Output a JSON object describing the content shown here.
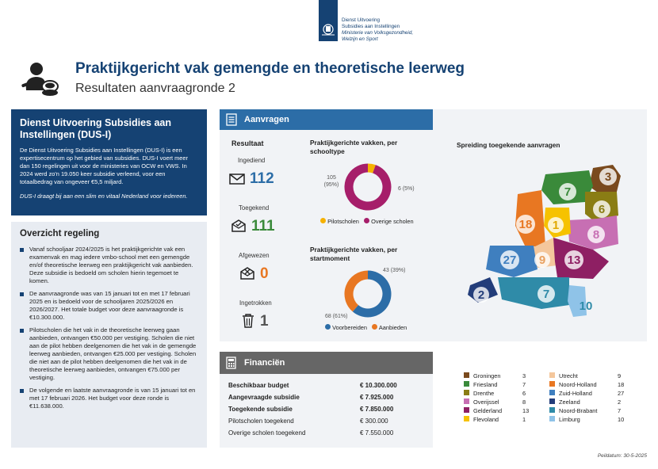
{
  "header": {
    "org_line1": "Dienst Uitvoering",
    "org_line2": "Subsidies aan Instellingen",
    "ministry_line1": "Ministerie van Volksgezondheid,",
    "ministry_line2": "Welzijn en Sport",
    "title": "Praktijkgericht vak gemengde en theoretische leerweg",
    "subtitle": "Resultaten aanvraagronde 2"
  },
  "dus": {
    "title": "Dienst Uitvoering Subsidies aan Instellingen (DUS-I)",
    "body": "De Dienst Uitvoering Subsidies aan Instellingen (DUS-I) is een expertisecentrum op het gebied van subsidies. DUS-I voert meer dan 150 regelingen uit voor de ministeries van OCW en VWS. In 2024 werd zo'n 19.050 keer subsidie verleend, voor een totaalbedrag van ongeveer €5,5 miljard.",
    "tagline": "DUS-I draagt bij aan een slim en vitaal Nederland voor iedereen."
  },
  "overzicht": {
    "title": "Overzicht regeling",
    "items": [
      "Vanaf schooljaar 2024/2025 is het praktijkgerichte vak een examenvak en mag iedere vmbo-school met een gemengde en/of theoretische leerweg een praktijkgericht vak aanbieden. Deze subsidie is bedoeld om scholen hierin tegemoet te komen.",
      "De aanvraagronde was van 15 januari tot en met 17 februari 2025 en is bedoeld voor de schooljaren 2025/2026 en 2026/2027. Het totale budget voor deze aanvraagronde is €10.300.000.",
      "Pilotscholen die het vak in de theoretische leerweg gaan aanbieden, ontvangen €50.000 per vestiging. Scholen die niet aan de pilot hebben deelgenomen die het vak in de gemengde leerweg aanbieden, ontvangen €25.000 per vestiging. Scholen die niet aan de pilot hebben deelgenomen die het vak in de theoretische leerweg aanbieden, ontvangen €75.000 per vestiging.",
      "De volgende en laatste aanvraagronde is van 15 januari tot en met 17 februari 2026. Het budget voor deze ronde is €11.638.000."
    ]
  },
  "aanvragen": {
    "header": "Aanvragen",
    "resultaat_title": "Resultaat",
    "ingediend_label": "Ingediend",
    "ingediend_value": "112",
    "toegekend_label": "Toegekend",
    "toegekend_value": "111",
    "afgewezen_label": "Afgewezen",
    "afgewezen_value": "0",
    "ingetrokken_label": "Ingetrokken",
    "ingetrokken_value": "1",
    "map_title": "Spreiding toegekende aanvragen"
  },
  "colors": {
    "navy": "#154273",
    "blue": "#2c6da7",
    "teal": "#2f8ba8",
    "green": "#3a8a3a",
    "orange": "#e87722",
    "magenta": "#a61e6a",
    "yellow": "#f6b100",
    "lightblue": "#4a8cc4"
  },
  "chart_data": [
    {
      "type": "pie",
      "title": "Praktijkgerichte vakken, per schooltype",
      "categories": [
        "Pilotscholen",
        "Overige scholen"
      ],
      "values": [
        6,
        105
      ],
      "data_labels": [
        "6 (5%)",
        "105 (95%)"
      ],
      "colors": [
        "#f6b100",
        "#a61e6a"
      ],
      "legend": "bottom"
    },
    {
      "type": "pie",
      "title": "Praktijkgerichte vakken, per startmoment",
      "categories": [
        "Voorbereiden",
        "Aanbieden"
      ],
      "values": [
        68,
        43
      ],
      "data_labels": [
        "68 (61%)",
        "43 (39%)"
      ],
      "colors": [
        "#2c6da7",
        "#e87722"
      ],
      "legend": "bottom"
    }
  ],
  "provinces": [
    {
      "name": "Groningen",
      "value": "3",
      "color": "#7a4a1e"
    },
    {
      "name": "Friesland",
      "value": "7",
      "color": "#3a8a3a"
    },
    {
      "name": "Drenthe",
      "value": "6",
      "color": "#8a7d14"
    },
    {
      "name": "Overijssel",
      "value": "8",
      "color": "#c76fb3"
    },
    {
      "name": "Gelderland",
      "value": "13",
      "color": "#8e1f63"
    },
    {
      "name": "Flevoland",
      "value": "1",
      "color": "#f6c200"
    },
    {
      "name": "Utrecht",
      "value": "9",
      "color": "#f4c79c"
    },
    {
      "name": "Noord-Holland",
      "value": "18",
      "color": "#e87722"
    },
    {
      "name": "Zuid-Holland",
      "value": "27",
      "color": "#3f7fbf"
    },
    {
      "name": "Zeeland",
      "value": "2",
      "color": "#233d7a"
    },
    {
      "name": "Noord-Brabant",
      "value": "7",
      "color": "#2f8ba8"
    },
    {
      "name": "Limburg",
      "value": "10",
      "color": "#8fc3e8"
    }
  ],
  "financien": {
    "header": "Financiën",
    "rows": [
      {
        "label": "Beschikbaar budget",
        "value": "€ 10.300.000",
        "bold": true
      },
      {
        "label": "Aangevraagde subsidie",
        "value": "€ 7.925.000",
        "bold": true
      },
      {
        "label": "Toegekende subsidie",
        "value": "€ 7.850.000",
        "bold": true
      },
      {
        "label": "Pilotscholen toegekend",
        "value": "€ 300.000",
        "bold": false
      },
      {
        "label": "Overige scholen toegekend",
        "value": "€ 7.550.000",
        "bold": false
      }
    ]
  },
  "footer": {
    "peildatum": "Peildatum: 30-5-2025"
  }
}
